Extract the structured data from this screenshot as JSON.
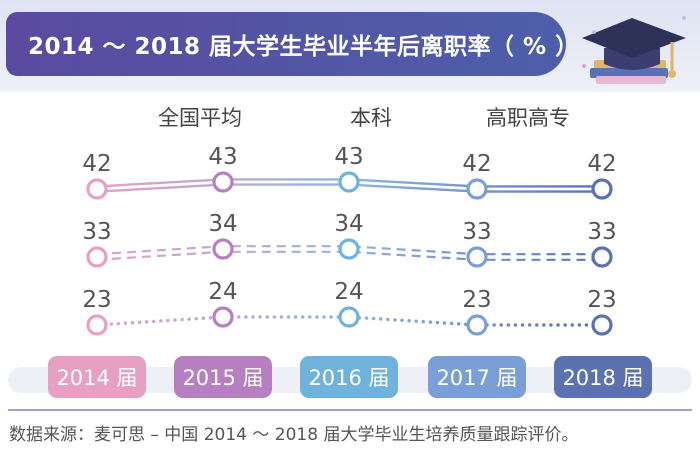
{
  "title": "2014 ～ 2018 届大学生毕业半年后离职率（ % ）",
  "source": "数据来源：麦可思 – 中国 2014 ～ 2018 届大学毕业生培养质量跟踪评价。",
  "colors": {
    "title_bg": "#5a4aa0",
    "year_2014": "#e7a0c4",
    "year_2015": "#b77fc2",
    "year_2016": "#6fb3dd",
    "year_2017": "#7a9ed6",
    "year_2018": "#5b71b0"
  },
  "chart_data": {
    "type": "line",
    "categories": [
      "2014 届",
      "2015 届",
      "2016 届",
      "2017 届",
      "2018 届"
    ],
    "series": [
      {
        "name": "全国平均",
        "style": "dashed",
        "values": [
          33,
          34,
          34,
          33,
          33
        ]
      },
      {
        "name": "本科",
        "style": "dotted",
        "values": [
          23,
          24,
          24,
          23,
          23
        ]
      },
      {
        "name": "高职高专",
        "style": "double-solid",
        "values": [
          42,
          43,
          43,
          42,
          42
        ]
      }
    ],
    "legend_position": "top",
    "grid": false
  }
}
